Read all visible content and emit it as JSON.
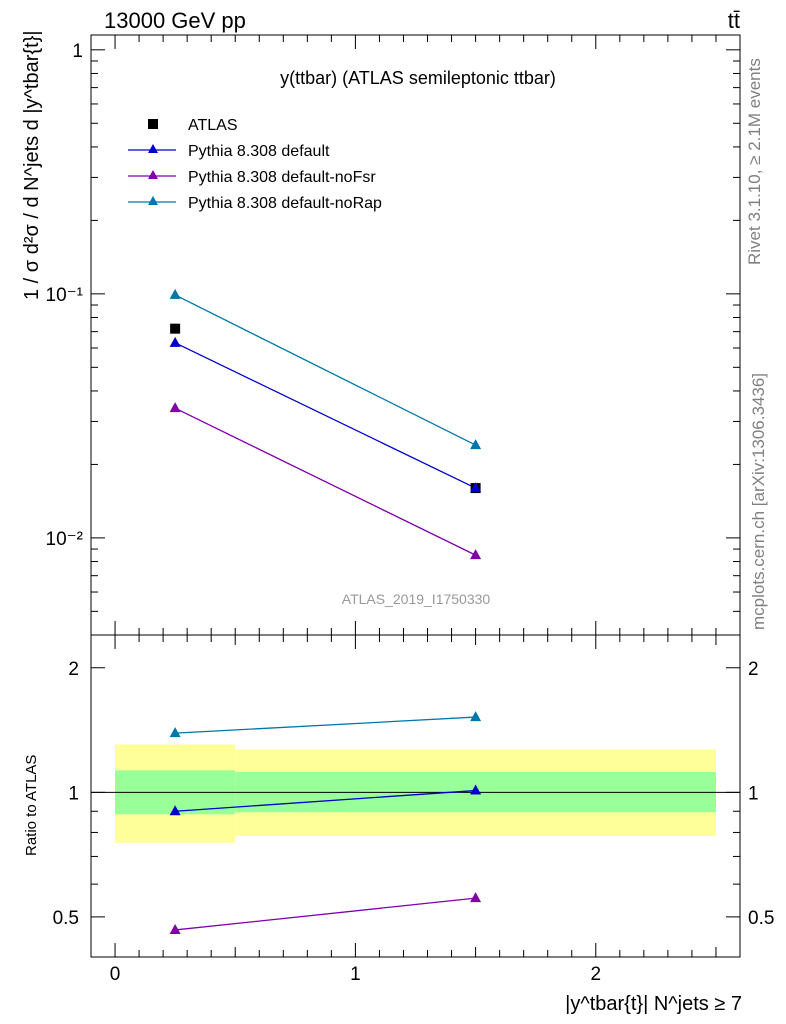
{
  "header": {
    "left": "13000 GeV pp",
    "right": "tt̄"
  },
  "side_texts": {
    "rivet": "Rivet 3.1.10, ≥ 2.1M events",
    "mcplots": "mcplots.cern.ch [arXiv:1306.3436]"
  },
  "colors": {
    "atlas": "#000000",
    "default": "#0000cc",
    "noFsr": "#7f00aa",
    "noRap": "#0077aa",
    "band_outer": "#ffff99",
    "band_inner": "#99ff99"
  },
  "chart_data": [
    {
      "type": "line",
      "title": "y(ttbar) (ATLAS semileptonic ttbar)",
      "watermark": "ATLAS_2019_I1750330",
      "ylabel": "1 / σ d²σ / d N^jets d |y^tbar{t}|",
      "yscale": "log",
      "ylim": [
        0.004,
        1.15
      ],
      "xlim": [
        -0.1,
        2.6
      ],
      "ytick_labels": [
        "10⁻²",
        "10⁻¹",
        "1"
      ],
      "legend_position": "top-left",
      "series": [
        {
          "name": "ATLAS",
          "key": "atlas",
          "marker": "square",
          "x": [
            0.25,
            1.5
          ],
          "y": [
            0.072,
            0.016
          ]
        },
        {
          "name": "Pythia 8.308 default",
          "key": "default",
          "marker": "triangle",
          "x": [
            0.25,
            1.5
          ],
          "y": [
            0.063,
            0.016
          ]
        },
        {
          "name": "Pythia 8.308 default-noFsr",
          "key": "noFsr",
          "marker": "triangle",
          "x": [
            0.25,
            1.5
          ],
          "y": [
            0.034,
            0.0085
          ]
        },
        {
          "name": "Pythia 8.308 default-noRap",
          "key": "noRap",
          "marker": "triangle",
          "x": [
            0.25,
            1.5
          ],
          "y": [
            0.099,
            0.024
          ]
        }
      ]
    },
    {
      "type": "line",
      "ylabel": "Ratio to ATLAS",
      "xlabel": "|y^tbar{t}| N^jets ≥ 7",
      "ylim": [
        0.4,
        2.4
      ],
      "yscale": "log",
      "xlim": [
        -0.1,
        2.6
      ],
      "xtick_labels": [
        "0",
        "1",
        "2"
      ],
      "ytick_labels": [
        "0.5",
        "1",
        "2"
      ],
      "bands": [
        {
          "x0": 0.0,
          "x1": 0.5,
          "outer": [
            0.755,
            1.305
          ],
          "inner": [
            0.885,
            1.13
          ]
        },
        {
          "x0": 0.5,
          "x1": 2.5,
          "outer": [
            0.785,
            1.27
          ],
          "inner": [
            0.895,
            1.12
          ]
        }
      ],
      "series": [
        {
          "name": "Pythia 8.308 default",
          "key": "default",
          "x": [
            0.25,
            1.5
          ],
          "y": [
            0.9,
            1.01
          ]
        },
        {
          "name": "Pythia 8.308 default-noFsr",
          "key": "noFsr",
          "x": [
            0.25,
            1.5
          ],
          "y": [
            0.465,
            0.555
          ]
        },
        {
          "name": "Pythia 8.308 default-noRap",
          "key": "noRap",
          "x": [
            0.25,
            1.5
          ],
          "y": [
            1.39,
            1.52
          ]
        }
      ]
    }
  ]
}
